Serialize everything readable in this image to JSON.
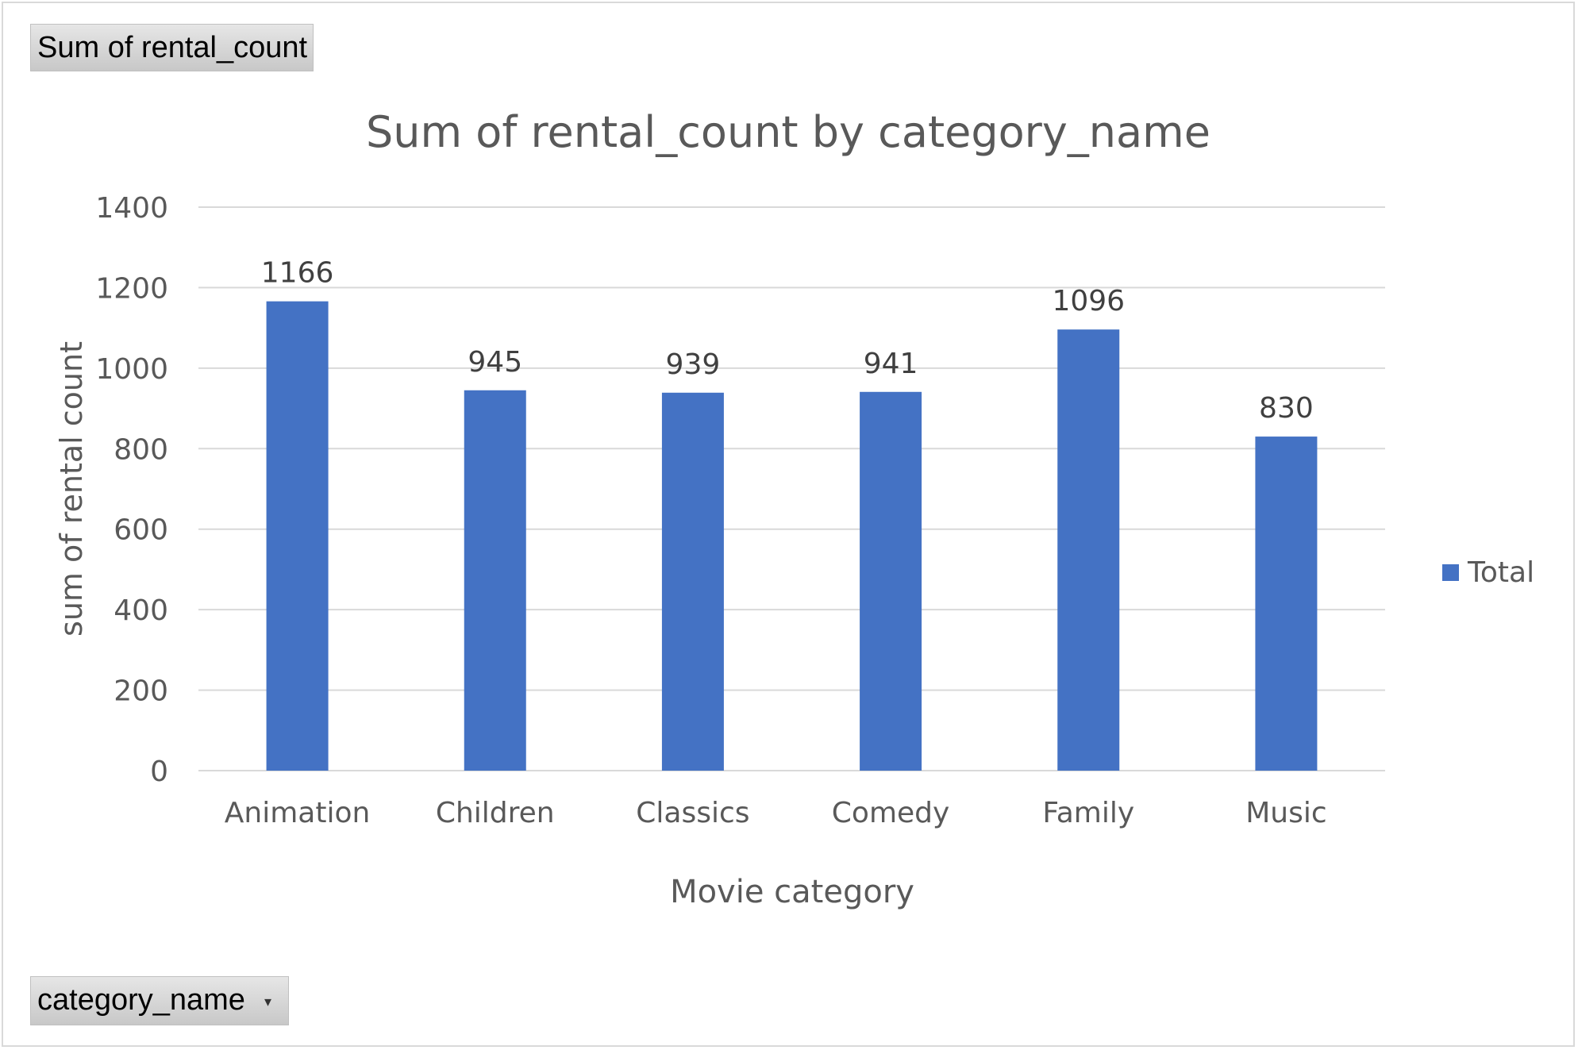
{
  "value_field_button": {
    "label": "Sum of rental_count"
  },
  "axis_field_button": {
    "label": "category_name"
  },
  "chart_data": {
    "type": "bar",
    "title": "Sum of rental_count by category_name",
    "xlabel": "Movie category",
    "ylabel": "sum of rental count",
    "categories": [
      "Animation",
      "Children",
      "Classics",
      "Comedy",
      "Family",
      "Music"
    ],
    "series": [
      {
        "name": "Total",
        "values": [
          1166,
          945,
          939,
          941,
          1096,
          830
        ],
        "color": "#4472c4"
      }
    ],
    "ylim": [
      0,
      1400
    ],
    "yticks": [
      0,
      200,
      400,
      600,
      800,
      1000,
      1200,
      1400
    ],
    "grid": true,
    "data_labels": true,
    "legend": "right"
  }
}
